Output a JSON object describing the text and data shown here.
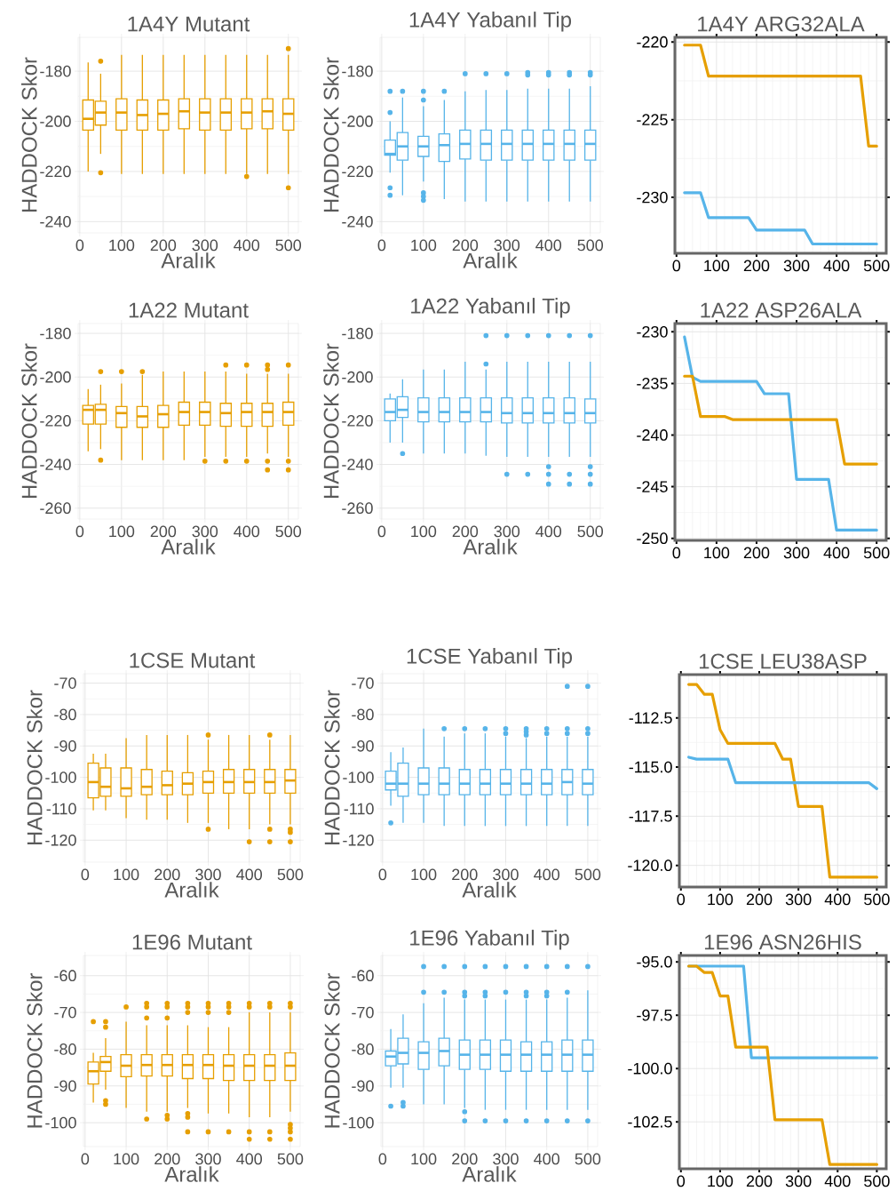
{
  "chart_data": [
    {
      "type": "box",
      "title": "1A4Y Mutant",
      "xlabel": "Aralık",
      "ylabel": "HADDOCK Skor",
      "x": [
        20,
        50,
        100,
        150,
        200,
        250,
        300,
        350,
        400,
        450,
        500
      ],
      "xlim": [
        -4,
        524
      ],
      "xticks": [
        0,
        100,
        200,
        300,
        400,
        500
      ],
      "ylim": [
        -244.5,
        -166.5
      ],
      "yticks": [
        -240,
        -220,
        -200,
        -180
      ],
      "grid": true,
      "series": [
        {
          "color": "#e69f00",
          "boxes": [
            {
              "low": -220,
              "q1": -203.5,
              "median": -199,
              "q3": -191.5,
              "high": -176.5
            },
            {
              "low": -213,
              "q1": -201.5,
              "median": -196.5,
              "q3": -192,
              "high": -181,
              "outliers": [
                -176,
                -220.5
              ]
            },
            {
              "low": -221,
              "q1": -203.5,
              "median": -196.5,
              "q3": -191,
              "high": -173.5
            },
            {
              "low": -221,
              "q1": -203.5,
              "median": -197.5,
              "q3": -191.5,
              "high": -173.5
            },
            {
              "low": -221,
              "q1": -203.5,
              "median": -197,
              "q3": -191.5,
              "high": -173.5
            },
            {
              "low": -221,
              "q1": -203,
              "median": -196,
              "q3": -191,
              "high": -173.5
            },
            {
              "low": -221,
              "q1": -203.5,
              "median": -196.5,
              "q3": -191,
              "high": -173.5
            },
            {
              "low": -221,
              "q1": -203.5,
              "median": -196.5,
              "q3": -191,
              "high": -173.5
            },
            {
              "low": -221,
              "q1": -203,
              "median": -196.5,
              "q3": -191,
              "high": -173.5,
              "outliers": [
                -222
              ]
            },
            {
              "low": -221,
              "q1": -203,
              "median": -196,
              "q3": -191,
              "high": -173.5
            },
            {
              "low": -221,
              "q1": -203.5,
              "median": -197,
              "q3": -191,
              "high": -173.5,
              "outliers": [
                -171,
                -226.5
              ]
            }
          ]
        }
      ]
    },
    {
      "type": "box",
      "title": "1A4Y Yabanıl Tip",
      "xlabel": "Aralık",
      "ylabel": "HADDOCK Skor",
      "x": [
        20,
        50,
        100,
        150,
        200,
        250,
        300,
        350,
        400,
        450,
        500
      ],
      "xlim": [
        -4,
        524
      ],
      "xticks": [
        0,
        100,
        200,
        300,
        400,
        500
      ],
      "ylim": [
        -244.5,
        -166.5
      ],
      "yticks": [
        -240,
        -220,
        -200,
        -180
      ],
      "grid": true,
      "series": [
        {
          "color": "#56b4e9",
          "boxes": [
            {
              "low": -220.5,
              "q1": -213.5,
              "median": -213,
              "q3": -207.5,
              "high": -200,
              "outliers": [
                -188,
                -196.5,
                -226.5,
                -229.5
              ]
            },
            {
              "low": -229.5,
              "q1": -215.5,
              "median": -210,
              "q3": -204.5,
              "high": -190.5,
              "outliers": [
                -188
              ]
            },
            {
              "low": -224,
              "q1": -214,
              "median": -210,
              "q3": -206,
              "high": -194,
              "outliers": [
                -188,
                -191.5,
                -228.5,
                -230,
                -231.5
              ]
            },
            {
              "low": -231,
              "q1": -216,
              "median": -209.5,
              "q3": -205,
              "high": -191.5,
              "outliers": [
                -188
              ]
            },
            {
              "low": -232,
              "q1": -215,
              "median": -209,
              "q3": -203.5,
              "high": -188,
              "outliers": [
                -181
              ]
            },
            {
              "low": -232,
              "q1": -215.5,
              "median": -209,
              "q3": -203.5,
              "high": -187.5,
              "outliers": [
                -181
              ]
            },
            {
              "low": -232,
              "q1": -215.5,
              "median": -209,
              "q3": -203.5,
              "high": -187.5,
              "outliers": [
                -181
              ]
            },
            {
              "low": -232,
              "q1": -215.5,
              "median": -209,
              "q3": -203.5,
              "high": -187,
              "outliers": [
                -180.5,
                -181.5
              ]
            },
            {
              "low": -232,
              "q1": -215.5,
              "median": -209,
              "q3": -203.5,
              "high": -187,
              "outliers": [
                -180.5,
                -181.5
              ]
            },
            {
              "low": -232,
              "q1": -215.5,
              "median": -209,
              "q3": -203.5,
              "high": -187,
              "outliers": [
                -180.5,
                -181.5
              ]
            },
            {
              "low": -232,
              "q1": -215.5,
              "median": -209,
              "q3": -203.5,
              "high": -186,
              "outliers": [
                -180.5,
                -181.5
              ]
            }
          ]
        }
      ]
    },
    {
      "type": "line",
      "title": "1A4Y ARG32ALA",
      "xlim": [
        -4,
        524
      ],
      "xticks": [
        0,
        100,
        200,
        300,
        400,
        500
      ],
      "ylim": [
        -233.6,
        -219.7
      ],
      "yticks": [
        -230,
        -225,
        -220
      ],
      "grid": true,
      "series": [
        {
          "color": "#e69f00",
          "x": [
            20,
            60,
            80,
            460,
            480,
            500
          ],
          "values": [
            -220.2,
            -220.2,
            -222.2,
            -222.2,
            -226.7,
            -226.7
          ]
        },
        {
          "color": "#56b4e9",
          "x": [
            20,
            60,
            80,
            180,
            200,
            320,
            340,
            500
          ],
          "values": [
            -229.7,
            -229.7,
            -231.3,
            -231.3,
            -232.1,
            -232.1,
            -233.0,
            -233.0
          ]
        }
      ]
    },
    {
      "type": "box",
      "title": "1A22 Mutant",
      "xlabel": "Aralık",
      "ylabel": "HADDOCK Skor",
      "x": [
        20,
        50,
        100,
        150,
        200,
        250,
        300,
        350,
        400,
        450,
        500
      ],
      "xlim": [
        -4,
        524
      ],
      "xticks": [
        0,
        100,
        200,
        300,
        400,
        500
      ],
      "ylim": [
        -265,
        -175.5
      ],
      "yticks": [
        -260,
        -240,
        -220,
        -200,
        -180
      ],
      "grid": true,
      "series": [
        {
          "color": "#e69f00",
          "boxes": [
            {
              "low": -234,
              "q1": -221.5,
              "median": -215,
              "q3": -213,
              "high": -205.5
            },
            {
              "low": -233,
              "q1": -221.5,
              "median": -215,
              "q3": -212.5,
              "high": -203.5,
              "outliers": [
                -197.5,
                -238
              ]
            },
            {
              "low": -238,
              "q1": -223,
              "median": -216.5,
              "q3": -213.5,
              "high": -203,
              "outliers": [
                -197.5
              ]
            },
            {
              "low": -238,
              "q1": -223,
              "median": -218,
              "q3": -213.5,
              "high": -199,
              "outliers": [
                -197.5
              ]
            },
            {
              "low": -238,
              "q1": -223,
              "median": -217,
              "q3": -213,
              "high": -197.5
            },
            {
              "low": -238,
              "q1": -222,
              "median": -216,
              "q3": -211.5,
              "high": -197.5
            },
            {
              "low": -236.5,
              "q1": -222,
              "median": -216,
              "q3": -211.5,
              "high": -197.5,
              "outliers": [
                -238.5
              ]
            },
            {
              "low": -236.5,
              "q1": -222.5,
              "median": -216.5,
              "q3": -212,
              "high": -197.5,
              "outliers": [
                -194.5,
                -238.5
              ]
            },
            {
              "low": -236.5,
              "q1": -222.5,
              "median": -216,
              "q3": -212,
              "high": -198.5,
              "outliers": [
                -194.5,
                -238.5
              ]
            },
            {
              "low": -235,
              "q1": -222.5,
              "median": -216,
              "q3": -212,
              "high": -198.5,
              "outliers": [
                -194.5,
                -196.5,
                -238.5,
                -242.5
              ]
            },
            {
              "low": -236.5,
              "q1": -222,
              "median": -216,
              "q3": -211.5,
              "high": -198.5,
              "outliers": [
                -194.5,
                -238.5,
                -242.5
              ]
            }
          ]
        }
      ]
    },
    {
      "type": "box",
      "title": "1A22 Yabanıl Tip",
      "xlabel": "Aralık",
      "ylabel": "HADDOCK Skor",
      "x": [
        20,
        50,
        100,
        150,
        200,
        250,
        300,
        350,
        400,
        450,
        500
      ],
      "xlim": [
        -4,
        524
      ],
      "xticks": [
        0,
        100,
        200,
        300,
        400,
        500
      ],
      "ylim": [
        -265,
        -175.5
      ],
      "yticks": [
        -260,
        -240,
        -220,
        -200,
        -180
      ],
      "grid": true,
      "series": [
        {
          "color": "#56b4e9",
          "boxes": [
            {
              "low": -230,
              "q1": -220,
              "median": -216,
              "q3": -210,
              "high": -207.5
            },
            {
              "low": -230,
              "q1": -218.5,
              "median": -215,
              "q3": -209,
              "high": -201,
              "outliers": [
                -235
              ]
            },
            {
              "low": -235,
              "q1": -220.5,
              "median": -216,
              "q3": -209.5,
              "high": -196.5
            },
            {
              "low": -235,
              "q1": -220.5,
              "median": -216,
              "q3": -209.5,
              "high": -196.5
            },
            {
              "low": -235,
              "q1": -220.5,
              "median": -216,
              "q3": -209.5,
              "high": -193
            },
            {
              "low": -236,
              "q1": -220.5,
              "median": -216,
              "q3": -209.5,
              "high": -196.5,
              "outliers": [
                -181,
                -194
              ]
            },
            {
              "low": -236.5,
              "q1": -221,
              "median": -216.5,
              "q3": -209.5,
              "high": -193,
              "outliers": [
                -181,
                -244.5
              ]
            },
            {
              "low": -236.5,
              "q1": -221,
              "median": -216.5,
              "q3": -209.5,
              "high": -193,
              "outliers": [
                -181,
                -244.5
              ]
            },
            {
              "low": -236.5,
              "q1": -221,
              "median": -216.5,
              "q3": -209.5,
              "high": -193,
              "outliers": [
                -181,
                -241,
                -244.5,
                -249
              ]
            },
            {
              "low": -236.5,
              "q1": -221,
              "median": -216.5,
              "q3": -209.5,
              "high": -193,
              "outliers": [
                -181,
                -244.5,
                -249
              ]
            },
            {
              "low": -236.5,
              "q1": -221,
              "median": -216.5,
              "q3": -210,
              "high": -193,
              "outliers": [
                -181,
                -241,
                -244.5,
                -249
              ]
            }
          ]
        }
      ]
    },
    {
      "type": "line",
      "title": "1A22 ASP26ALA",
      "xlim": [
        -4,
        524
      ],
      "xticks": [
        0,
        100,
        200,
        300,
        400,
        500
      ],
      "ylim": [
        -250.2,
        -229.2
      ],
      "yticks": [
        -250,
        -245,
        -240,
        -235,
        -230
      ],
      "grid": true,
      "series": [
        {
          "color": "#56b4e9",
          "x": [
            20,
            40,
            60,
            200,
            220,
            280,
            300,
            380,
            400,
            500
          ],
          "values": [
            -230.5,
            -234.4,
            -234.8,
            -234.8,
            -236,
            -236,
            -244.3,
            -244.3,
            -249.2,
            -249.2
          ]
        },
        {
          "color": "#e69f00",
          "x": [
            20,
            40,
            60,
            120,
            140,
            400,
            420,
            500
          ],
          "values": [
            -234.3,
            -234.3,
            -238.2,
            -238.2,
            -238.5,
            -238.5,
            -242.8,
            -242.8
          ]
        }
      ]
    },
    {
      "type": "box",
      "title": "1CSE Mutant",
      "xlabel": "Aralık",
      "ylabel": "HADDOCK Skor",
      "x": [
        20,
        50,
        100,
        150,
        200,
        250,
        300,
        350,
        400,
        450,
        500
      ],
      "xlim": [
        -4,
        524
      ],
      "xticks": [
        0,
        100,
        200,
        300,
        400,
        500
      ],
      "ylim": [
        -127,
        -67
      ],
      "yticks": [
        -120,
        -110,
        -100,
        -90,
        -80,
        -70
      ],
      "grid": true,
      "series": [
        {
          "color": "#e69f00",
          "boxes": [
            {
              "low": -110.5,
              "q1": -106.5,
              "median": -101.5,
              "q3": -95.5,
              "high": -92.5
            },
            {
              "low": -110.5,
              "q1": -106,
              "median": -103,
              "q3": -97,
              "high": -92.5
            },
            {
              "low": -113,
              "q1": -106,
              "median": -103.5,
              "q3": -97,
              "high": -87.5
            },
            {
              "low": -113.5,
              "q1": -105.5,
              "median": -103,
              "q3": -97.5,
              "high": -86.5
            },
            {
              "low": -113.5,
              "q1": -105.5,
              "median": -102.5,
              "q3": -98,
              "high": -86.5
            },
            {
              "low": -114.5,
              "q1": -105.5,
              "median": -102,
              "q3": -98.5,
              "high": -86.5
            },
            {
              "low": -114.5,
              "q1": -105,
              "median": -101.5,
              "q3": -98,
              "high": -88,
              "outliers": [
                -86.5,
                -116.5
              ]
            },
            {
              "low": -116.5,
              "q1": -105,
              "median": -101.5,
              "q3": -97.5,
              "high": -86.5
            },
            {
              "low": -116.5,
              "q1": -105,
              "median": -101.5,
              "q3": -97.5,
              "high": -86.5,
              "outliers": [
                -120.5
              ]
            },
            {
              "low": -115,
              "q1": -105,
              "median": -101.5,
              "q3": -97.5,
              "high": -88,
              "outliers": [
                -86.5,
                -116.5,
                -120.5
              ]
            },
            {
              "low": -115,
              "q1": -105,
              "median": -101,
              "q3": -97.5,
              "high": -86.5,
              "outliers": [
                -116.5,
                -117.5,
                -120.5
              ]
            }
          ]
        }
      ]
    },
    {
      "type": "box",
      "title": "1CSE Yabanıl Tip",
      "xlabel": "Aralık",
      "ylabel": "HADDOCK Skor",
      "x": [
        20,
        50,
        100,
        150,
        200,
        250,
        300,
        350,
        400,
        450,
        500
      ],
      "xlim": [
        -4,
        524
      ],
      "xticks": [
        0,
        100,
        200,
        300,
        400,
        500
      ],
      "ylim": [
        -127,
        -67
      ],
      "yticks": [
        -120,
        -110,
        -100,
        -90,
        -80,
        -70
      ],
      "grid": true,
      "series": [
        {
          "color": "#56b4e9",
          "boxes": [
            {
              "low": -109,
              "q1": -104,
              "median": -102,
              "q3": -98,
              "high": -92,
              "outliers": [
                -114.5
              ]
            },
            {
              "low": -114.5,
              "q1": -106,
              "median": -102,
              "q3": -95.5,
              "high": -90.5
            },
            {
              "low": -114.5,
              "q1": -105.5,
              "median": -102,
              "q3": -97,
              "high": -84.5
            },
            {
              "low": -115.5,
              "q1": -105.5,
              "median": -102,
              "q3": -97,
              "high": -87,
              "outliers": [
                -84.5
              ]
            },
            {
              "low": -115.5,
              "q1": -105.5,
              "median": -102,
              "q3": -97.5,
              "high": -86,
              "outliers": [
                -84.5
              ]
            },
            {
              "low": -115.5,
              "q1": -105.5,
              "median": -102,
              "q3": -97.5,
              "high": -86,
              "outliers": [
                -84.5
              ]
            },
            {
              "low": -115.5,
              "q1": -105.5,
              "median": -102,
              "q3": -97.5,
              "high": -87,
              "outliers": [
                -84.5,
                -86
              ]
            },
            {
              "low": -115.5,
              "q1": -105.5,
              "median": -102,
              "q3": -97.5,
              "high": -87.5,
              "outliers": [
                -84.5,
                -85.5,
                -86.5
              ]
            },
            {
              "low": -115.5,
              "q1": -105.5,
              "median": -102,
              "q3": -97.5,
              "high": -87,
              "outliers": [
                -84.5,
                -86
              ]
            },
            {
              "low": -115.5,
              "q1": -105.5,
              "median": -101.5,
              "q3": -97.5,
              "high": -87,
              "outliers": [
                -71,
                -84.5,
                -86
              ]
            },
            {
              "low": -115.5,
              "q1": -105.5,
              "median": -102,
              "q3": -97.5,
              "high": -87,
              "outliers": [
                -71,
                -84.5,
                -86
              ]
            }
          ]
        }
      ]
    },
    {
      "type": "line",
      "title": "1CSE LEU38ASP",
      "xlim": [
        -4,
        524
      ],
      "xticks": [
        0,
        100,
        200,
        300,
        400,
        500
      ],
      "ylim": [
        -121.1,
        -110.3
      ],
      "yticks": [
        {
          "value": -120,
          "label": "-120.0"
        },
        {
          "value": -117.5,
          "label": "-117.5"
        },
        {
          "value": -115,
          "label": "-115.0"
        },
        {
          "value": -112.5,
          "label": "-112.5"
        }
      ],
      "grid": true,
      "series": [
        {
          "color": "#e69f00",
          "x": [
            20,
            40,
            60,
            80,
            100,
            120,
            240,
            260,
            280,
            300,
            360,
            380,
            500
          ],
          "values": [
            -110.8,
            -110.8,
            -111.3,
            -111.3,
            -113.1,
            -113.8,
            -113.8,
            -114.6,
            -114.6,
            -117,
            -117,
            -120.6,
            -120.6
          ]
        },
        {
          "color": "#56b4e9",
          "x": [
            20,
            40,
            120,
            140,
            480,
            500
          ],
          "values": [
            -114.5,
            -114.6,
            -114.6,
            -115.8,
            -115.8,
            -116.1
          ]
        }
      ]
    },
    {
      "type": "box",
      "title": "1E96 Mutant",
      "xlabel": "Aralık",
      "ylabel": "HADDOCK Skor",
      "x": [
        20,
        50,
        100,
        150,
        200,
        250,
        300,
        350,
        400,
        450,
        500
      ],
      "xlim": [
        -4,
        524
      ],
      "xticks": [
        0,
        100,
        200,
        300,
        400,
        500
      ],
      "ylim": [
        -106.5,
        -54.5
      ],
      "yticks": [
        -100,
        -90,
        -80,
        -70,
        -60
      ],
      "grid": true,
      "series": [
        {
          "color": "#e69f00",
          "boxes": [
            {
              "low": -94.5,
              "q1": -89.5,
              "median": -86,
              "q3": -83.5,
              "high": -81,
              "outliers": [
                -72.5
              ]
            },
            {
              "low": -91,
              "q1": -86,
              "median": -83.5,
              "q3": -82,
              "high": -77,
              "outliers": [
                -72.5,
                -74,
                -94,
                -95
              ]
            },
            {
              "low": -96,
              "q1": -87.5,
              "median": -84.5,
              "q3": -81.5,
              "high": -72.5,
              "outliers": [
                -68.5
              ]
            },
            {
              "low": -97,
              "q1": -87.3,
              "median": -84.3,
              "q3": -81.5,
              "high": -73.5,
              "outliers": [
                -67.5,
                -68.5,
                -71.5,
                -99
              ]
            },
            {
              "low": -97,
              "q1": -87.3,
              "median": -84.3,
              "q3": -81.5,
              "high": -73.5,
              "outliers": [
                -67.5,
                -68.5,
                -71.5,
                -98,
                -99
              ]
            },
            {
              "low": -96,
              "q1": -88,
              "median": -84.3,
              "q3": -81.5,
              "high": -73.5,
              "outliers": [
                -67.5,
                -68.5,
                -70,
                -97.5,
                -98.5,
                -102.5
              ]
            },
            {
              "low": -97.5,
              "q1": -88,
              "median": -84.3,
              "q3": -81.5,
              "high": -74,
              "outliers": [
                -67.5,
                -68.5,
                -70,
                -102.5
              ]
            },
            {
              "low": -97.5,
              "q1": -88.5,
              "median": -84.5,
              "q3": -81.5,
              "high": -74,
              "outliers": [
                -67.5,
                -68.5,
                -70,
                -102.5
              ]
            },
            {
              "low": -98.5,
              "q1": -88.5,
              "median": -84.5,
              "q3": -81.5,
              "high": -70,
              "outliers": [
                -67.5,
                -68.5,
                -102.5,
                -104.5
              ]
            },
            {
              "low": -98.5,
              "q1": -88.5,
              "median": -84.5,
              "q3": -81.5,
              "high": -70,
              "outliers": [
                -67.5,
                -68.5,
                -102.5,
                -104.5
              ]
            },
            {
              "low": -97,
              "q1": -88.5,
              "median": -84.5,
              "q3": -81,
              "high": -70,
              "outliers": [
                -67.5,
                -68.5,
                -100.5,
                -101.5,
                -102.5,
                -104.5
              ]
            }
          ]
        }
      ]
    },
    {
      "type": "box",
      "title": "1E96 Yabanıl Tip",
      "xlabel": "Aralık",
      "ylabel": "HADDOCK Skor",
      "x": [
        20,
        50,
        100,
        150,
        200,
        250,
        300,
        350,
        400,
        450,
        500
      ],
      "xlim": [
        -4,
        524
      ],
      "xticks": [
        0,
        100,
        200,
        300,
        400,
        500
      ],
      "ylim": [
        -106.5,
        -54.5
      ],
      "yticks": [
        -100,
        -90,
        -80,
        -70,
        -60
      ],
      "grid": true,
      "series": [
        {
          "color": "#56b4e9",
          "boxes": [
            {
              "low": -90.5,
              "q1": -84.5,
              "median": -82,
              "q3": -80.5,
              "high": -74.5,
              "outliers": [
                -95.5
              ]
            },
            {
              "low": -90.5,
              "q1": -84,
              "median": -81,
              "q3": -77,
              "high": -70.5,
              "outliers": [
                -94.5,
                -95.5
              ]
            },
            {
              "low": -95,
              "q1": -85.5,
              "median": -81,
              "q3": -78,
              "high": -67.5,
              "outliers": [
                -57.5,
                -64.5
              ]
            },
            {
              "low": -95,
              "q1": -84.5,
              "median": -80.5,
              "q3": -77,
              "high": -66,
              "outliers": [
                -57.5,
                -64.5
              ]
            },
            {
              "low": -96,
              "q1": -85.5,
              "median": -81.5,
              "q3": -77.5,
              "high": -66.5,
              "outliers": [
                -57.5,
                -64.5,
                -65.5,
                -97,
                -99.5
              ]
            },
            {
              "low": -96.5,
              "q1": -85.5,
              "median": -81.5,
              "q3": -77.5,
              "high": -66.5,
              "outliers": [
                -57.5,
                -64.5,
                -65.5,
                -99.5
              ]
            },
            {
              "low": -96.5,
              "q1": -86,
              "median": -81.5,
              "q3": -77.5,
              "high": -66.5,
              "outliers": [
                -57.5,
                -64.5,
                -99.5
              ]
            },
            {
              "low": -96.5,
              "q1": -86,
              "median": -81.5,
              "q3": -78,
              "high": -66.5,
              "outliers": [
                -57.5,
                -64.5,
                -65.5,
                -99.5
              ]
            },
            {
              "low": -96.5,
              "q1": -86,
              "median": -81.5,
              "q3": -78,
              "high": -66.5,
              "outliers": [
                -57.5,
                -64.5,
                -65.5,
                -99.5
              ]
            },
            {
              "low": -96.5,
              "q1": -86,
              "median": -81.5,
              "q3": -77.5,
              "high": -66,
              "outliers": [
                -57.5,
                -64.5,
                -99.5
              ]
            },
            {
              "low": -96.5,
              "q1": -86,
              "median": -81.5,
              "q3": -77.5,
              "high": -64,
              "outliers": [
                -57.5,
                -99.5
              ]
            }
          ]
        }
      ]
    },
    {
      "type": "line",
      "title": "1E96 ASN26HIS",
      "xlim": [
        -4,
        524
      ],
      "xticks": [
        0,
        100,
        200,
        300,
        400,
        500
      ],
      "ylim": [
        -104.7,
        -94.7
      ],
      "yticks": [
        {
          "value": -102.5,
          "label": "-102.5"
        },
        {
          "value": -100,
          "label": "-100.0"
        },
        {
          "value": -97.5,
          "label": "-97.5"
        },
        {
          "value": -95,
          "label": "-95.0"
        }
      ],
      "grid": true,
      "series": [
        {
          "color": "#56b4e9",
          "x": [
            20,
            160,
            180,
            500
          ],
          "values": [
            -95.2,
            -95.2,
            -99.5,
            -99.5
          ]
        },
        {
          "color": "#e69f00",
          "x": [
            20,
            40,
            60,
            80,
            100,
            120,
            140,
            220,
            240,
            360,
            380,
            500
          ],
          "values": [
            -95.2,
            -95.2,
            -95.5,
            -95.5,
            -96.6,
            -96.6,
            -99,
            -99,
            -102.4,
            -102.4,
            -104.5,
            -104.5
          ]
        }
      ]
    }
  ]
}
